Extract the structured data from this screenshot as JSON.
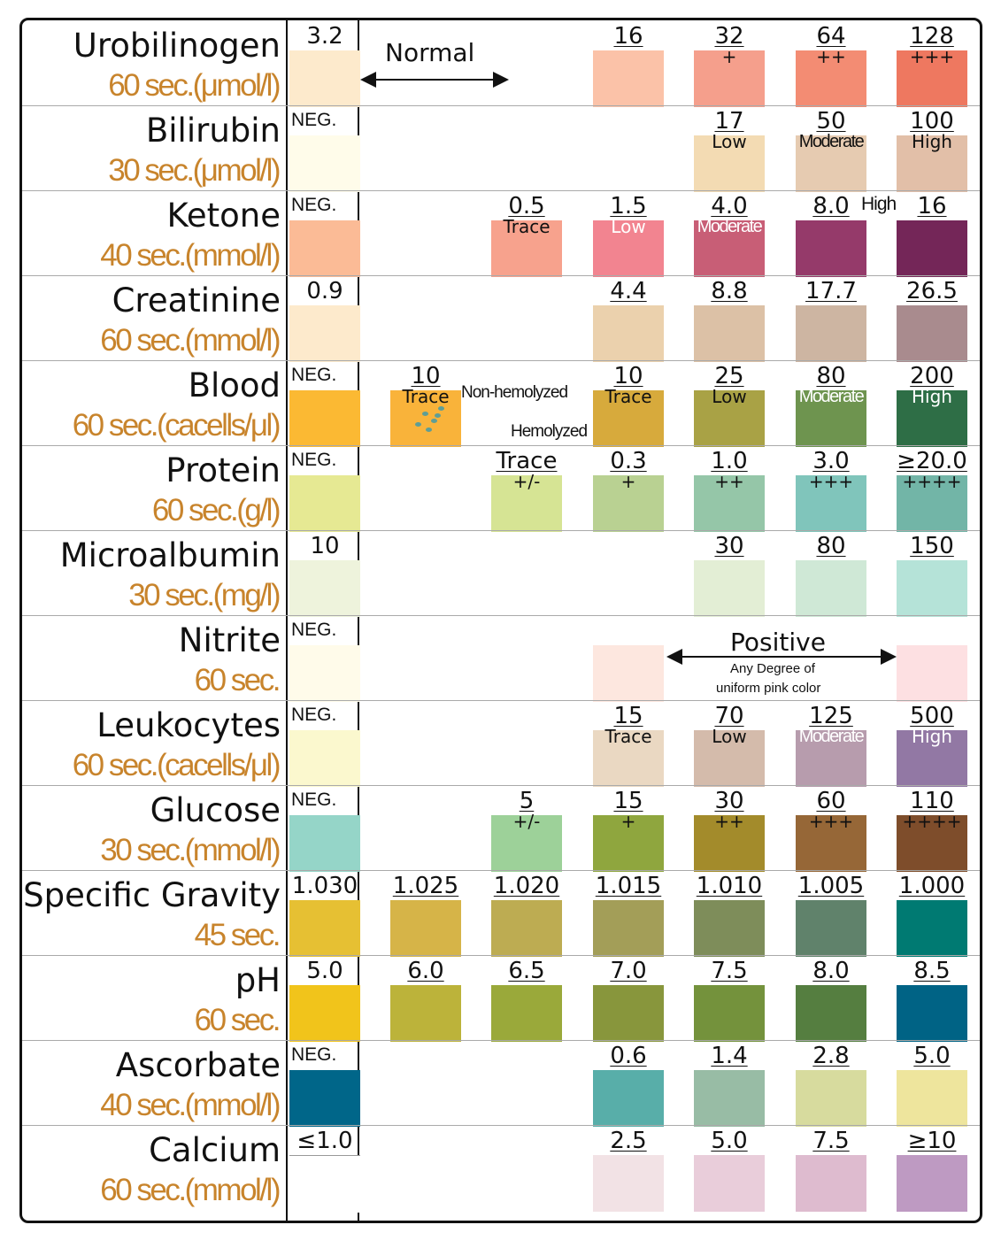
{
  "rows": [
    {
      "name": "Urobilinogen",
      "time": "60 sec.(μmol/l)",
      "base_label": "3.2",
      "base_color": "#fdeacc",
      "normal_label": "Normal",
      "pads": [
        {
          "col": 3,
          "value": "16",
          "sub": "",
          "color": "#fbc2a8"
        },
        {
          "col": 4,
          "value": "32",
          "sub": "+",
          "color": "#f59f8c"
        },
        {
          "col": 5,
          "value": "64",
          "sub": "++",
          "color": "#f38c73"
        },
        {
          "col": 6,
          "value": "128",
          "sub": "+++",
          "color": "#ee7860"
        }
      ]
    },
    {
      "name": "Bilirubin",
      "time": "30 sec.(μmol/l)",
      "base_label": "NEG.",
      "base_color": "#fffcea",
      "pads": [
        {
          "col": 4,
          "value": "17",
          "sub": "Low",
          "color": "#f3dbb3"
        },
        {
          "col": 5,
          "value": "50",
          "sub": "Moderate",
          "color": "#e6cbb1"
        },
        {
          "col": 6,
          "value": "100",
          "sub": "High",
          "color": "#e2bfa8"
        }
      ]
    },
    {
      "name": "Ketone",
      "time": "40 sec.(mmol/l)",
      "base_label": "NEG.",
      "base_color": "#fbbb96",
      "high_label": "High",
      "pads": [
        {
          "col": 2,
          "value": "0.5",
          "sub": "Trace",
          "color": "#f7a28d"
        },
        {
          "col": 3,
          "value": "1.5",
          "sub": "Low",
          "color": "#f28490"
        },
        {
          "col": 4,
          "value": "4.0",
          "sub": "Moderate",
          "color": "#c85e76"
        },
        {
          "col": 5,
          "value": "8.0",
          "sub": "",
          "color": "#953a6a"
        },
        {
          "col": 6,
          "value": "16",
          "sub": "",
          "color": "#742658"
        }
      ]
    },
    {
      "name": "Creatinine",
      "time": "60 sec.(mmol/l)",
      "base_label": "0.9",
      "base_color": "#fdeacc",
      "pads": [
        {
          "col": 3,
          "value": "4.4",
          "sub": "",
          "color": "#ebd1ad"
        },
        {
          "col": 4,
          "value": "8.8",
          "sub": "",
          "color": "#dcc1a6"
        },
        {
          "col": 5,
          "value": "17.7",
          "sub": "",
          "color": "#cdb5a2"
        },
        {
          "col": 6,
          "value": "26.5",
          "sub": "",
          "color": "#a98b8e"
        }
      ]
    },
    {
      "name": "Blood",
      "time": "60 sec.(cacells/μl)",
      "base_label": "NEG.",
      "base_color": "#fbb933",
      "non_hemolyzed_label": "Non-hemolyzed",
      "hemolyzed_label": "Hemolyzed",
      "pads": [
        {
          "col": 1,
          "value": "10",
          "sub": "Trace",
          "color": "#f9b33a"
        },
        {
          "col": 3,
          "value": "10",
          "sub": "Trace",
          "color": "#d7aa3c"
        },
        {
          "col": 4,
          "value": "25",
          "sub": "Low",
          "color": "#a9a245"
        },
        {
          "col": 5,
          "value": "80",
          "sub": "Moderate",
          "color": "#6e944f"
        },
        {
          "col": 6,
          "value": "200",
          "sub": "High",
          "color": "#2e6e46"
        }
      ]
    },
    {
      "name": "Protein",
      "time": "60 sec.(g/l)",
      "base_label": "NEG.",
      "base_color": "#e6e993",
      "pads": [
        {
          "col": 2,
          "value": "Trace",
          "sub": "+/-",
          "color": "#d6e494"
        },
        {
          "col": 3,
          "value": "0.3",
          "sub": "+",
          "color": "#b9d192"
        },
        {
          "col": 4,
          "value": "1.0",
          "sub": "++",
          "color": "#95c6a8"
        },
        {
          "col": 5,
          "value": "3.0",
          "sub": "+++",
          "color": "#80c5bb"
        },
        {
          "col": 6,
          "value": "≥20.0",
          "sub": "++++",
          "color": "#72b5a7"
        }
      ]
    },
    {
      "name": "Microalbumin",
      "time": "30 sec.(mg/l)",
      "base_label": "10",
      "base_color": "#eef3dc",
      "pads": [
        {
          "col": 4,
          "value": "30",
          "sub": "",
          "color": "#e3eed5"
        },
        {
          "col": 5,
          "value": "80",
          "sub": "",
          "color": "#cfe8d6"
        },
        {
          "col": 6,
          "value": "150",
          "sub": "",
          "color": "#b5e3d8"
        }
      ]
    },
    {
      "name": "Nitrite",
      "time": "60 sec.",
      "base_label": "NEG.",
      "base_color": "#fffbea",
      "positive_label": "Positive",
      "positive_note_1": "Any Degree of",
      "positive_note_2": "uniform pink color",
      "pads": [
        {
          "col": 3,
          "value": "",
          "sub": "",
          "color": "#fde7df"
        },
        {
          "col": 6,
          "value": "",
          "sub": "",
          "color": "#fde0e2"
        }
      ]
    },
    {
      "name": "Leukocytes",
      "time": "60 sec.(cacells/μl)",
      "base_label": "NEG.",
      "base_color": "#fbf8ce",
      "pads": [
        {
          "col": 3,
          "value": "15",
          "sub": "Trace",
          "color": "#ead8c2"
        },
        {
          "col": 4,
          "value": "70",
          "sub": "Low",
          "color": "#d4bbab"
        },
        {
          "col": 5,
          "value": "125",
          "sub": "Moderate",
          "color": "#b79cad"
        },
        {
          "col": 6,
          "value": "500",
          "sub": "High",
          "color": "#9278a4"
        }
      ]
    },
    {
      "name": "Glucose",
      "time": "30 sec.(mmol/l)",
      "base_label": "NEG.",
      "base_color": "#95d5c8",
      "pads": [
        {
          "col": 2,
          "value": "5",
          "sub": "+/-",
          "color": "#9dd199"
        },
        {
          "col": 3,
          "value": "15",
          "sub": "+",
          "color": "#8fa63e"
        },
        {
          "col": 4,
          "value": "30",
          "sub": "++",
          "color": "#a38b2b"
        },
        {
          "col": 5,
          "value": "60",
          "sub": "+++",
          "color": "#966737"
        },
        {
          "col": 6,
          "value": "110",
          "sub": "++++",
          "color": "#7e4d2b"
        }
      ]
    },
    {
      "name": "Specific Gravity",
      "time": "45 sec.",
      "base_label": "1.030",
      "base_color": "#e6c033",
      "pads": [
        {
          "col": 1,
          "value": "1.025",
          "sub": "",
          "color": "#d6b448"
        },
        {
          "col": 2,
          "value": "1.020",
          "sub": "",
          "color": "#bdac52"
        },
        {
          "col": 3,
          "value": "1.015",
          "sub": "",
          "color": "#a39e58"
        },
        {
          "col": 4,
          "value": "1.010",
          "sub": "",
          "color": "#7e8d5a"
        },
        {
          "col": 5,
          "value": "1.005",
          "sub": "",
          "color": "#60826b"
        },
        {
          "col": 6,
          "value": "1.000",
          "sub": "",
          "color": "#007a72"
        }
      ]
    },
    {
      "name": "pH",
      "time": "60 sec.",
      "base_label": "5.0",
      "base_color": "#f1c41b",
      "pads": [
        {
          "col": 1,
          "value": "6.0",
          "sub": "",
          "color": "#bcb33a"
        },
        {
          "col": 2,
          "value": "6.5",
          "sub": "",
          "color": "#9aa93a"
        },
        {
          "col": 3,
          "value": "7.0",
          "sub": "",
          "color": "#88963c"
        },
        {
          "col": 4,
          "value": "7.5",
          "sub": "",
          "color": "#74923c"
        },
        {
          "col": 5,
          "value": "8.0",
          "sub": "",
          "color": "#557e40"
        },
        {
          "col": 6,
          "value": "8.5",
          "sub": "",
          "color": "#006385"
        }
      ]
    },
    {
      "name": "Ascorbate",
      "time": "40 sec.(mmol/l)",
      "base_label": "NEG.",
      "base_color": "#006689",
      "pads": [
        {
          "col": 3,
          "value": "0.6",
          "sub": "",
          "color": "#58aea9"
        },
        {
          "col": 4,
          "value": "1.4",
          "sub": "",
          "color": "#98bca5"
        },
        {
          "col": 5,
          "value": "2.8",
          "sub": "",
          "color": "#d7db9e"
        },
        {
          "col": 6,
          "value": "5.0",
          "sub": "",
          "color": "#eee59d"
        }
      ]
    },
    {
      "name": "Calcium",
      "time": "60 sec.(mmol/l)",
      "base_label": "≤1.0",
      "base_color": "#ffffff",
      "pads": [
        {
          "col": 3,
          "value": "2.5",
          "sub": "",
          "color": "#f2e2e5"
        },
        {
          "col": 4,
          "value": "5.0",
          "sub": "",
          "color": "#e9cdda"
        },
        {
          "col": 5,
          "value": "7.5",
          "sub": "",
          "color": "#debbcf"
        },
        {
          "col": 6,
          "value": "≥10",
          "sub": "",
          "color": "#be9ac2"
        }
      ]
    }
  ]
}
